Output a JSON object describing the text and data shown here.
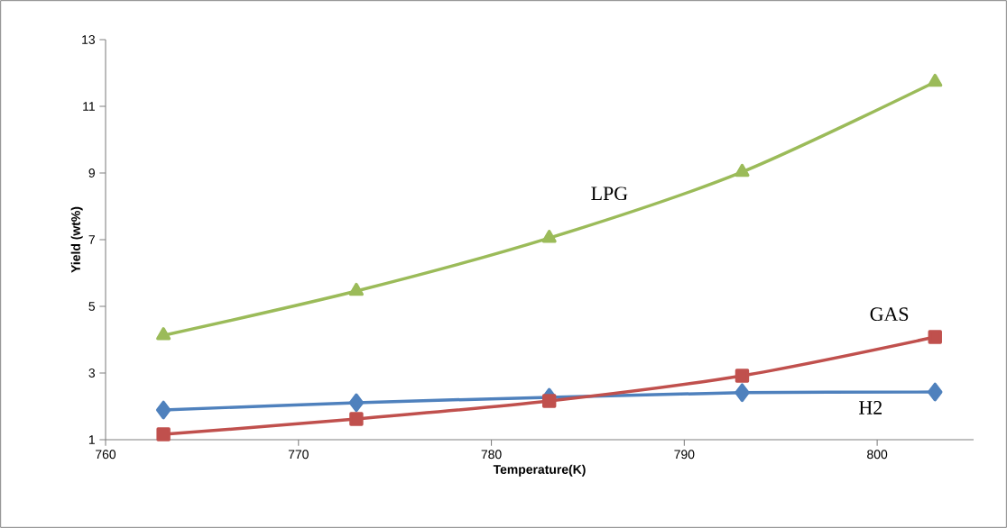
{
  "chart_data": {
    "type": "line",
    "xlabel": "Temperature(K)",
    "ylabel": "Yield (wt%)",
    "x": [
      763,
      773,
      783,
      793,
      803
    ],
    "series": [
      {
        "name": "H2",
        "color": "#4f81bd",
        "marker": "diamond",
        "values": [
          1.89,
          2.11,
          2.27,
          2.41,
          2.43
        ]
      },
      {
        "name": "GAS",
        "color": "#c0504d",
        "marker": "square",
        "values": [
          1.16,
          1.62,
          2.16,
          2.92,
          4.08
        ]
      },
      {
        "name": "LPG",
        "color": "#9bbb59",
        "marker": "triangle",
        "values": [
          4.13,
          5.46,
          7.05,
          9.03,
          11.73
        ]
      }
    ],
    "xlim": [
      760,
      805
    ],
    "xticks": [
      760,
      770,
      780,
      790,
      800
    ],
    "ylim": [
      1,
      13
    ],
    "yticks": [
      1,
      3,
      5,
      7,
      9,
      11,
      13
    ],
    "grid": false,
    "legend": false,
    "line_style": "solid"
  }
}
